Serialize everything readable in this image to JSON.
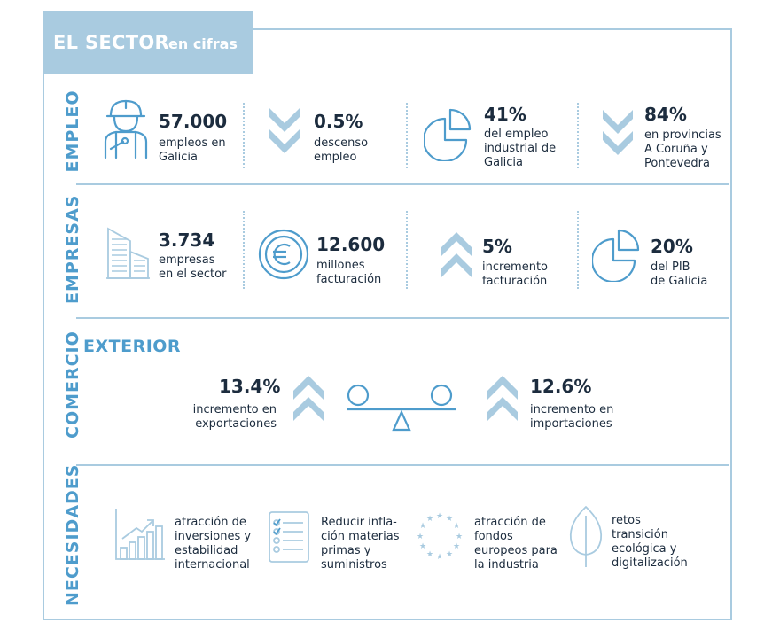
{
  "header": {
    "title": "EL SECTOR",
    "subtitle": "en cifras"
  },
  "colors": {
    "accent": "#4e9ccc",
    "light": "#a9cbe0",
    "text": "#1c2c3e"
  },
  "empleo": {
    "label": "EMPLEO",
    "stats": [
      {
        "value": "57.000",
        "desc": "empleos en\nGalicia",
        "icon": "worker-icon"
      },
      {
        "value": "0.5%",
        "desc": "descenso\nempleo",
        "icon": "double-chevron-down-icon"
      },
      {
        "value": "41%",
        "desc": "del empleo\nindustrial de\nGalicia",
        "icon": "pie-chart-icon"
      },
      {
        "value": "84%",
        "desc": "en provincias\nA Coruña y\nPontevedra",
        "icon": "double-chevron-down-icon"
      }
    ]
  },
  "empresas": {
    "label": "EMPRESAS",
    "stats": [
      {
        "value": "3.734",
        "desc": "empresas\nen el sector",
        "icon": "buildings-icon"
      },
      {
        "value": "12.600",
        "desc": "millones\nfacturación",
        "icon": "euro-coin-icon"
      },
      {
        "value": "5%",
        "desc": "incremento\nfacturación",
        "icon": "double-chevron-up-icon"
      },
      {
        "value": "20%",
        "desc": "del PIB\nde Galicia",
        "icon": "pie-chart-icon"
      }
    ]
  },
  "comercio": {
    "label": "COMERCIO",
    "heading": "EXTERIOR",
    "exports": {
      "value": "13.4%",
      "desc": "incremento en\nexportaciones"
    },
    "imports": {
      "value": "12.6%",
      "desc": "incremento en\nimportaciones"
    }
  },
  "necesidades": {
    "label": "NECESIDADES",
    "items": [
      {
        "text": "atracción de\ninversiones y\nestabilidad\ninternacional",
        "icon": "growth-chart-icon"
      },
      {
        "text": "Reducir infla-\nción materias\nprimas y\nsuministros",
        "icon": "checklist-icon"
      },
      {
        "text": "atracción de\nfondos\neuropeos para\nla industria",
        "icon": "eu-stars-icon"
      },
      {
        "text": "retos\ntransición\necológica y\ndigitalización",
        "icon": "leaf-icon"
      }
    ]
  }
}
